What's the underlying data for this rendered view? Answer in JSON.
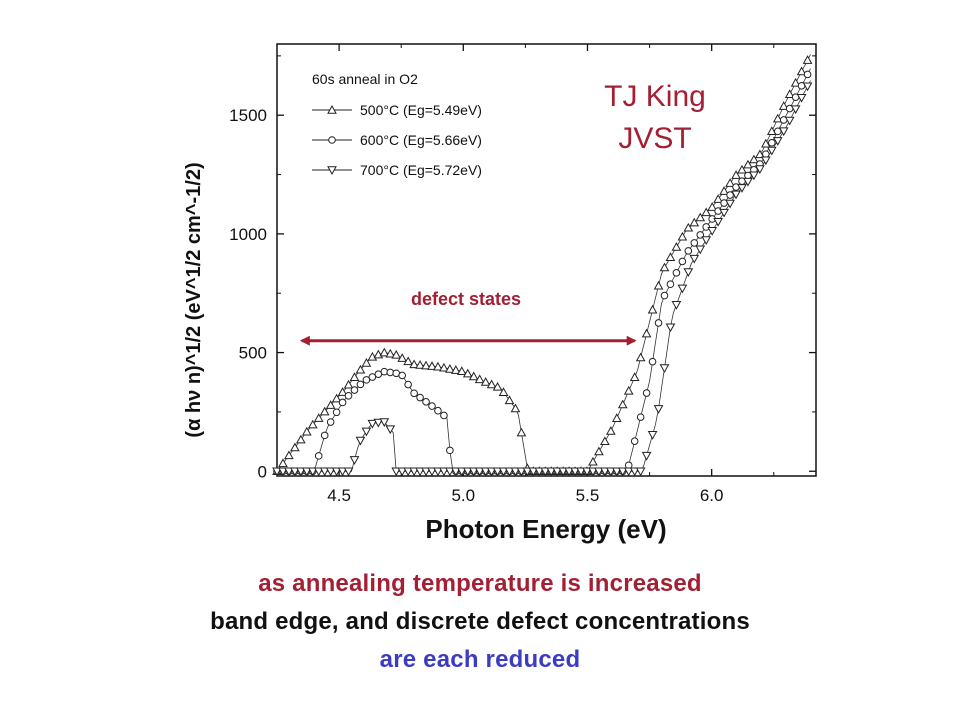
{
  "chart_data": {
    "type": "scatter",
    "xlabel": "Photon Energy (eV)",
    "ylabel": "(α hν n)^1/2 (eV^1/2 cm^-1/2)",
    "xlim": [
      4.25,
      6.42
    ],
    "ylim": [
      -20,
      1800
    ],
    "xticks": [
      4.5,
      5.0,
      5.5,
      6.0
    ],
    "yticks": [
      0,
      500,
      1000,
      1500
    ],
    "legend_title": "60s anneal in O2",
    "legend_position": "top-left",
    "grid": false,
    "series": [
      {
        "name": "500°C (Eg=5.49eV)",
        "marker": "triangle-up",
        "points": [
          [
            4.25,
            0
          ],
          [
            4.38,
            180
          ],
          [
            4.45,
            260
          ],
          [
            4.52,
            340
          ],
          [
            4.58,
            420
          ],
          [
            4.63,
            480
          ],
          [
            4.68,
            500
          ],
          [
            4.73,
            490
          ],
          [
            4.8,
            450
          ],
          [
            4.9,
            440
          ],
          [
            5.0,
            420
          ],
          [
            5.08,
            380
          ],
          [
            5.15,
            350
          ],
          [
            5.22,
            250
          ],
          [
            5.26,
            0
          ],
          [
            5.5,
            0
          ],
          [
            5.6,
            180
          ],
          [
            5.7,
            420
          ],
          [
            5.8,
            840
          ],
          [
            5.9,
            1020
          ],
          [
            6.0,
            1110
          ],
          [
            6.1,
            1250
          ],
          [
            6.2,
            1340
          ],
          [
            6.3,
            1560
          ],
          [
            6.4,
            1760
          ]
        ]
      },
      {
        "name": "600°C (Eg=5.66eV)",
        "marker": "circle",
        "points": [
          [
            4.25,
            0
          ],
          [
            4.4,
            0
          ],
          [
            4.45,
            180
          ],
          [
            4.52,
            300
          ],
          [
            4.6,
            380
          ],
          [
            4.68,
            420
          ],
          [
            4.75,
            410
          ],
          [
            4.8,
            330
          ],
          [
            4.88,
            270
          ],
          [
            4.94,
            220
          ],
          [
            4.95,
            0
          ],
          [
            5.66,
            0
          ],
          [
            5.75,
            380
          ],
          [
            5.8,
            720
          ],
          [
            5.9,
            920
          ],
          [
            6.0,
            1060
          ],
          [
            6.1,
            1200
          ],
          [
            6.2,
            1300
          ],
          [
            6.3,
            1500
          ],
          [
            6.4,
            1700
          ]
        ]
      },
      {
        "name": "700°C (Eg=5.72eV)",
        "marker": "triangle-down",
        "points": [
          [
            4.25,
            0
          ],
          [
            4.55,
            0
          ],
          [
            4.58,
            120
          ],
          [
            4.63,
            200
          ],
          [
            4.68,
            210
          ],
          [
            4.72,
            160
          ],
          [
            4.73,
            0
          ],
          [
            5.72,
            0
          ],
          [
            5.78,
            220
          ],
          [
            5.84,
            650
          ],
          [
            5.92,
            880
          ],
          [
            6.0,
            1010
          ],
          [
            6.1,
            1170
          ],
          [
            6.2,
            1280
          ],
          [
            6.3,
            1450
          ],
          [
            6.4,
            1650
          ]
        ]
      }
    ],
    "annotations": [
      {
        "text": "TJ King",
        "color": "#a31f34"
      },
      {
        "text": "JVST",
        "color": "#a31f34"
      },
      {
        "text": "defect states",
        "color": "#a31f34",
        "arrow_from": 4.35,
        "arrow_to": 5.69,
        "arrow_y": 550
      }
    ]
  },
  "captions": {
    "line1": "as annealing temperature is increased",
    "line2": "band edge, and discrete defect concentrations",
    "line3": "are each reduced"
  },
  "colors": {
    "accent_red": "#a31f34",
    "caption_blue": "#3b3bc4",
    "axis": "#111111"
  }
}
